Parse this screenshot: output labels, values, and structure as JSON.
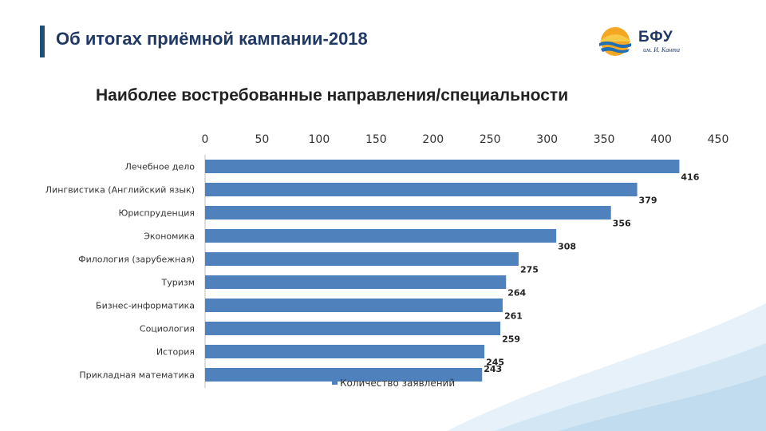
{
  "header": {
    "title": "Об итогах приёмной кампании-2018"
  },
  "logo": {
    "name": "БФУ",
    "subtitle": "им. И. Канта"
  },
  "colors": {
    "bar": "#4f81bd",
    "title": "#1f3864",
    "accent": "#1f4e79"
  },
  "chart_data": {
    "type": "bar",
    "orientation": "horizontal",
    "title": "Наиболее востребованные направления/специальности",
    "xlabel": "",
    "ylabel": "",
    "xlim": [
      0,
      450
    ],
    "ticks": [
      "0",
      "50",
      "100",
      "150",
      "200",
      "250",
      "300",
      "350",
      "400",
      "450"
    ],
    "tick_values": [
      0,
      50,
      100,
      150,
      200,
      250,
      300,
      350,
      400,
      450
    ],
    "axis_position": "top",
    "grid": false,
    "legend": "bottom",
    "categories": [
      "Лечебное дело",
      "Лингвистика (Английский язык)",
      "Юриспруденция",
      "Экономика",
      "Филология (зарубежная)",
      "Туризм",
      "Бизнес-информатика",
      "Социология",
      "История",
      "Прикладная математика"
    ],
    "series": [
      {
        "name": "Количество заявлений",
        "values": [
          416,
          379,
          356,
          308,
          275,
          264,
          261,
          259,
          245,
          243
        ]
      }
    ]
  }
}
